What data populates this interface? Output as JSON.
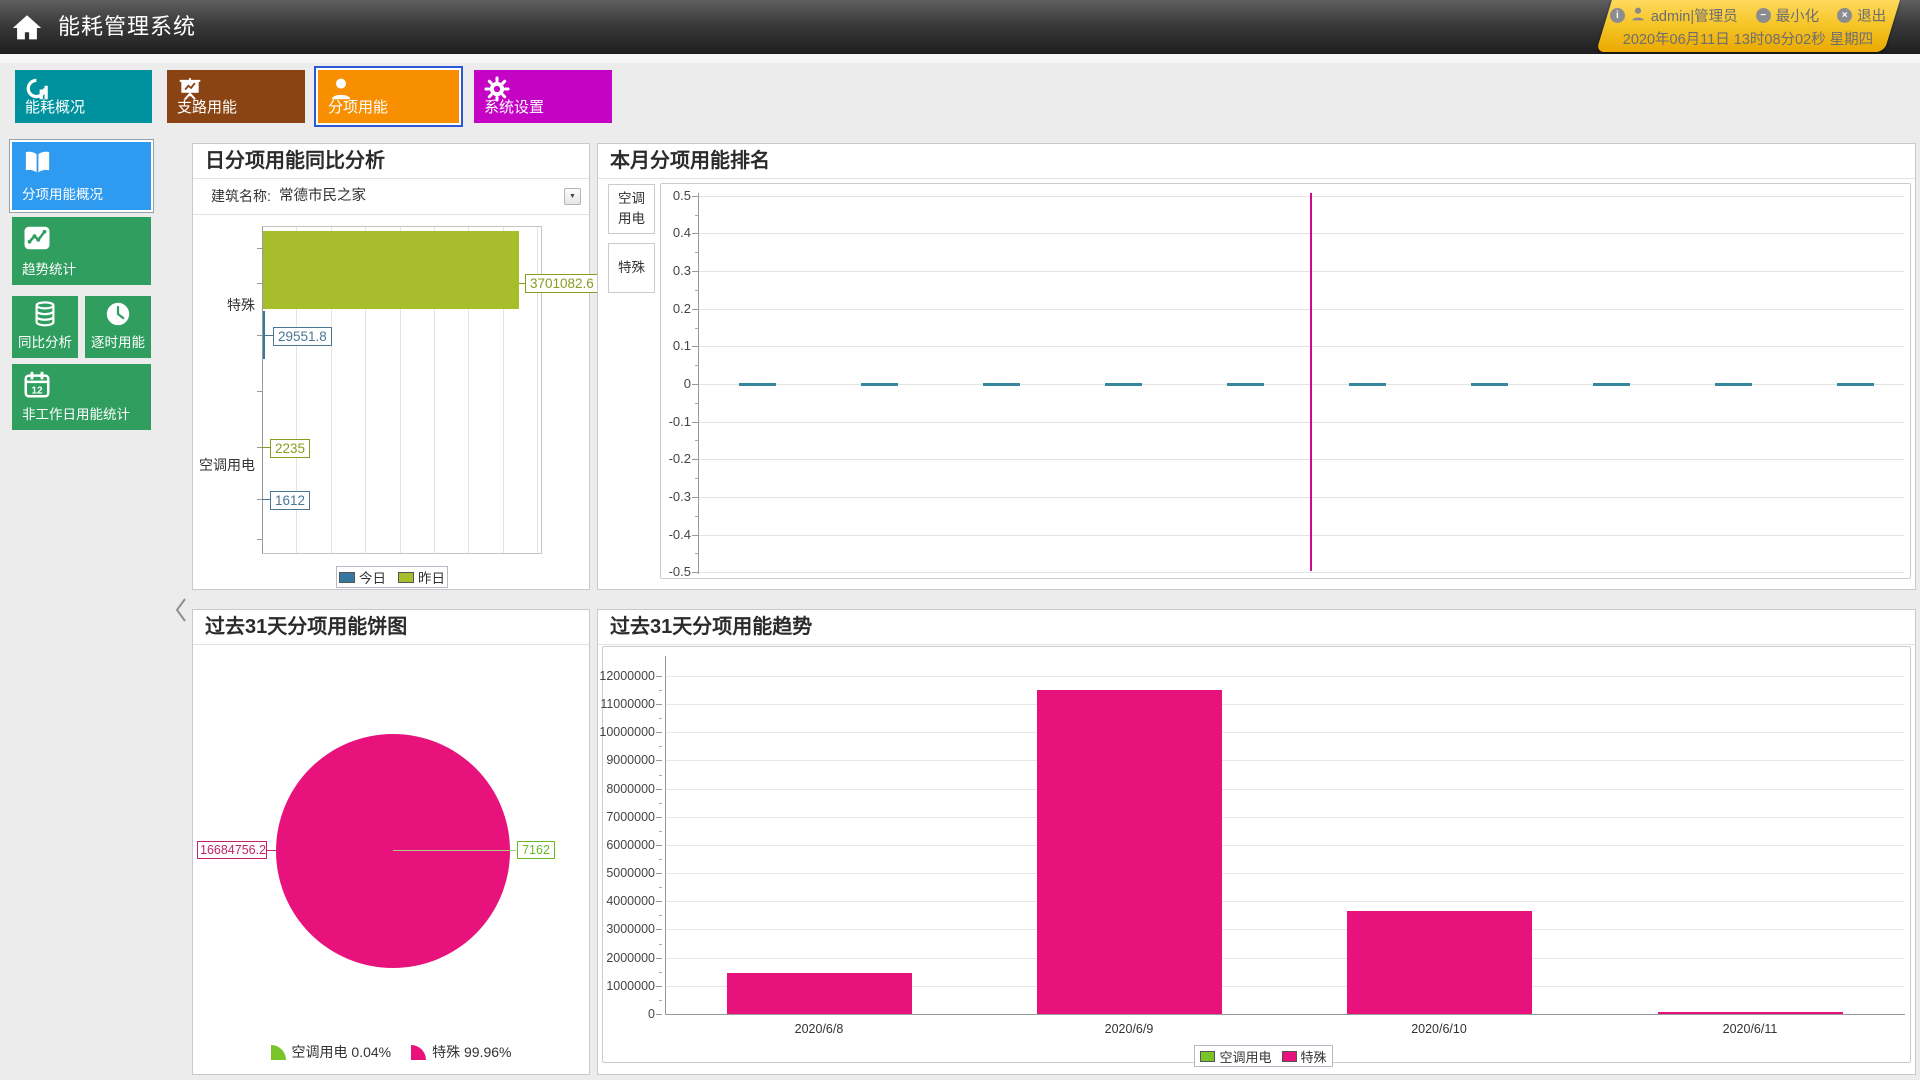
{
  "app": {
    "title": "能耗管理系统"
  },
  "topbar": {
    "user": "admin|管理员",
    "minimize": "最小化",
    "logout": "退出",
    "datetime": "2020年06月11日 13时08分02秒 星期四"
  },
  "tabs": [
    {
      "label": "能耗概况",
      "icon": "overview-icon",
      "color": "#00919e",
      "selected": false
    },
    {
      "label": "支路用能",
      "icon": "branch-icon",
      "color": "#8a4413",
      "selected": false
    },
    {
      "label": "分项用能",
      "icon": "person-icon",
      "color": "#f78f00",
      "selected": true
    },
    {
      "label": "系统设置",
      "icon": "gear-icon",
      "color": "#c403c4",
      "selected": false
    }
  ],
  "sidebar": [
    {
      "label": "分项用能概况",
      "icon": "book-icon",
      "color": "#2f9bf0",
      "selected": true
    },
    {
      "label": "趋势统计",
      "icon": "trend-icon",
      "color": "#2f9e5f",
      "selected": false
    },
    {
      "label": "同比分析",
      "icon": "database-icon",
      "color": "#2f9e5f",
      "selected": false
    },
    {
      "label": "逐时用能",
      "icon": "clock-icon",
      "color": "#2f9e5f",
      "selected": false
    },
    {
      "label": "非工作日用能统计",
      "icon": "calendar-icon",
      "color": "#2f9e5f",
      "selected": false
    }
  ],
  "panels": {
    "daily_compare": {
      "title": "日分项用能同比分析",
      "building_label": "建筑名称:",
      "building_value": "常德市民之家"
    },
    "monthly_rank": {
      "title": "本月分项用能排名",
      "side_items": [
        "空调用电",
        "特殊"
      ]
    },
    "pie31": {
      "title": "过去31天分项用能饼图"
    },
    "trend31": {
      "title": "过去31天分项用能趋势"
    }
  },
  "chart_data": [
    {
      "id": "daily_compare",
      "type": "bar",
      "orientation": "horizontal",
      "title": "日分项用能同比分析",
      "categories": [
        "特殊",
        "空调用电"
      ],
      "series": [
        {
          "name": "今日",
          "color": "#36789f",
          "values": [
            29551.8,
            1612
          ]
        },
        {
          "name": "昨日",
          "color": "#a7bd2b",
          "values": [
            3701082.6,
            2235
          ]
        }
      ],
      "data_labels": [
        "3701082.6",
        "29551.8",
        "2235",
        "1612"
      ],
      "xlim": [
        0,
        3701082.6
      ],
      "legend_position": "bottom",
      "grid": true
    },
    {
      "id": "monthly_rank",
      "type": "bar",
      "title": "本月分项用能排名",
      "ylim": [
        -0.5,
        0.5
      ],
      "ytick_step": 0.1,
      "yticks": [
        "0.5",
        "0.4",
        "0.3",
        "0.2",
        "0.1",
        "0",
        "-0.1",
        "-0.2",
        "-0.3",
        "-0.4",
        "-0.5"
      ],
      "series": [
        {
          "name": "空调用电",
          "color": "#35879c",
          "values": [
            0,
            0,
            0,
            0,
            0,
            0,
            0,
            0,
            0,
            0
          ]
        }
      ],
      "marker_line": {
        "series": "特殊",
        "color": "#cc0a92",
        "position_fraction": 0.51,
        "full_height": true
      },
      "grid": true
    },
    {
      "id": "pie31",
      "type": "pie",
      "title": "过去31天分项用能饼图",
      "slices": [
        {
          "name": "空调用电",
          "value": 7162,
          "percent": "0.04%",
          "color": "#79c428"
        },
        {
          "name": "特殊",
          "value": 16684756.2,
          "percent": "99.96%",
          "color": "#e8127c"
        }
      ],
      "data_labels": [
        "16684756.2",
        "7162"
      ],
      "legend_position": "bottom"
    },
    {
      "id": "trend31",
      "type": "bar",
      "title": "过去31天分项用能趋势",
      "categories": [
        "2020/6/8",
        "2020/6/9",
        "2020/6/10",
        "2020/6/11"
      ],
      "series": [
        {
          "name": "空调用电",
          "color": "#79c428",
          "values": [
            0,
            0,
            0,
            0
          ]
        },
        {
          "name": "特殊",
          "color": "#e8127c",
          "values": [
            1450000,
            11500000,
            3670000,
            80000
          ]
        }
      ],
      "ylim": [
        0,
        12600000
      ],
      "ytick_step": 1000000,
      "legend_position": "bottom",
      "grid": true
    }
  ]
}
